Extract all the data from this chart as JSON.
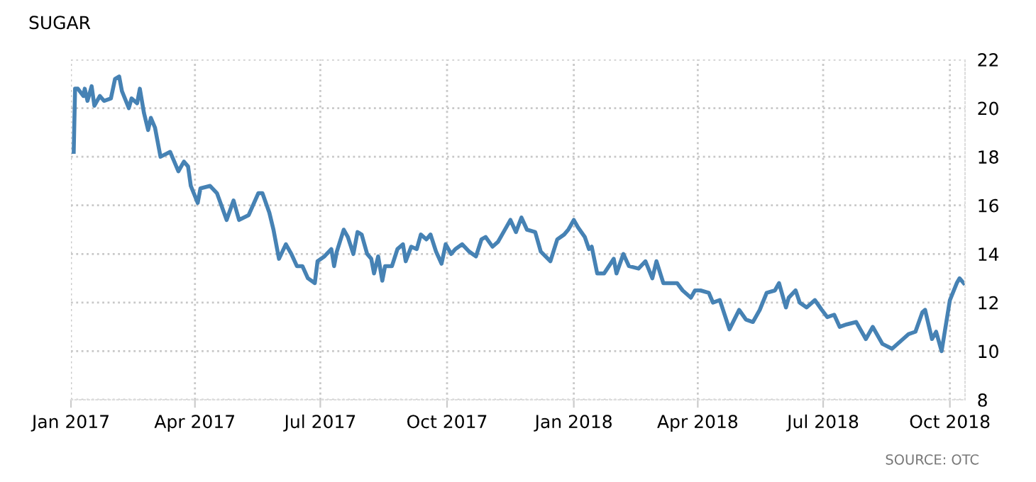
{
  "chart_data": {
    "type": "line",
    "title": "SUGAR",
    "annotations": [
      "SOURCE: OTC"
    ],
    "x": [
      "2017-01-03",
      "2017-01-04",
      "2017-01-06",
      "2017-01-10",
      "2017-01-11",
      "2017-01-13",
      "2017-01-16",
      "2017-01-18",
      "2017-01-22",
      "2017-01-25",
      "2017-01-30",
      "2017-02-02",
      "2017-02-05",
      "2017-02-07",
      "2017-02-12",
      "2017-02-14",
      "2017-02-18",
      "2017-02-20",
      "2017-02-23",
      "2017-02-26",
      "2017-02-28",
      "2017-03-03",
      "2017-03-07",
      "2017-03-14",
      "2017-03-20",
      "2017-03-24",
      "2017-03-27",
      "2017-03-29",
      "2017-04-03",
      "2017-04-05",
      "2017-04-12",
      "2017-04-17",
      "2017-04-24",
      "2017-04-29",
      "2017-05-03",
      "2017-05-10",
      "2017-05-17",
      "2017-05-20",
      "2017-05-25",
      "2017-05-28",
      "2017-06-01",
      "2017-06-06",
      "2017-06-10",
      "2017-06-14",
      "2017-06-18",
      "2017-06-22",
      "2017-06-27",
      "2017-06-29",
      "2017-07-04",
      "2017-07-09",
      "2017-07-11",
      "2017-07-13",
      "2017-07-18",
      "2017-07-21",
      "2017-07-25",
      "2017-07-28",
      "2017-07-31",
      "2017-08-04",
      "2017-08-07",
      "2017-08-09",
      "2017-08-12",
      "2017-08-15",
      "2017-08-17",
      "2017-08-22",
      "2017-08-26",
      "2017-08-30",
      "2017-09-01",
      "2017-09-05",
      "2017-09-09",
      "2017-09-12",
      "2017-09-16",
      "2017-09-19",
      "2017-09-23",
      "2017-09-27",
      "2017-09-30",
      "2017-10-04",
      "2017-10-07",
      "2017-10-12",
      "2017-10-17",
      "2017-10-22",
      "2017-10-26",
      "2017-10-29",
      "2017-11-03",
      "2017-11-07",
      "2017-11-12",
      "2017-11-16",
      "2017-11-20",
      "2017-11-24",
      "2017-11-28",
      "2017-12-04",
      "2017-12-08",
      "2017-12-15",
      "2017-12-20",
      "2017-12-25",
      "2017-12-28",
      "2018-01-01",
      "2018-01-04",
      "2018-01-09",
      "2018-01-12",
      "2018-01-14",
      "2018-01-18",
      "2018-01-23",
      "2018-01-30",
      "2018-02-01",
      "2018-02-06",
      "2018-02-10",
      "2018-02-17",
      "2018-02-22",
      "2018-02-27",
      "2018-03-02",
      "2018-03-07",
      "2018-03-12",
      "2018-03-17",
      "2018-03-21",
      "2018-03-27",
      "2018-03-30",
      "2018-04-03",
      "2018-04-09",
      "2018-04-12",
      "2018-04-17",
      "2018-04-24",
      "2018-05-01",
      "2018-05-06",
      "2018-05-11",
      "2018-05-16",
      "2018-05-21",
      "2018-05-27",
      "2018-05-30",
      "2018-06-04",
      "2018-06-06",
      "2018-06-11",
      "2018-06-14",
      "2018-06-19",
      "2018-06-25",
      "2018-06-30",
      "2018-07-04",
      "2018-07-09",
      "2018-07-13",
      "2018-07-18",
      "2018-07-25",
      "2018-08-01",
      "2018-08-06",
      "2018-08-13",
      "2018-08-20",
      "2018-08-28",
      "2018-09-01",
      "2018-09-06",
      "2018-09-11",
      "2018-09-13",
      "2018-09-18",
      "2018-09-21",
      "2018-09-25",
      "2018-10-01",
      "2018-10-06",
      "2018-10-08",
      "2018-10-11"
    ],
    "series": [
      {
        "color": "#4682b4",
        "values": [
          18.2,
          20.8,
          20.8,
          20.5,
          20.8,
          20.3,
          20.9,
          20.1,
          20.5,
          20.3,
          20.4,
          21.2,
          21.3,
          20.7,
          20.0,
          20.4,
          20.2,
          20.8,
          19.8,
          19.1,
          19.6,
          19.2,
          18.0,
          18.2,
          17.4,
          17.8,
          17.6,
          16.8,
          16.1,
          16.7,
          16.8,
          16.5,
          15.4,
          16.2,
          15.4,
          15.6,
          16.5,
          16.5,
          15.7,
          15.0,
          13.8,
          14.4,
          14.0,
          13.5,
          13.5,
          13.0,
          12.8,
          13.7,
          13.9,
          14.2,
          13.5,
          14.1,
          15.0,
          14.7,
          14.0,
          14.9,
          14.8,
          14.0,
          13.8,
          13.2,
          13.9,
          12.9,
          13.5,
          13.5,
          14.2,
          14.4,
          13.7,
          14.3,
          14.2,
          14.8,
          14.6,
          14.8,
          14.1,
          13.6,
          14.4,
          14.0,
          14.2,
          14.4,
          14.1,
          13.9,
          14.6,
          14.7,
          14.3,
          14.5,
          15.0,
          15.4,
          14.9,
          15.5,
          15.0,
          14.9,
          14.1,
          13.7,
          14.6,
          14.8,
          15.0,
          15.4,
          15.1,
          14.7,
          14.2,
          14.3,
          13.2,
          13.2,
          13.8,
          13.2,
          14.0,
          13.5,
          13.4,
          13.7,
          13.0,
          13.7,
          12.8,
          12.8,
          12.8,
          12.5,
          12.2,
          12.5,
          12.5,
          12.4,
          12.0,
          12.1,
          10.9,
          11.7,
          11.3,
          11.2,
          11.7,
          12.4,
          12.5,
          12.8,
          11.8,
          12.2,
          12.5,
          12.0,
          11.8,
          12.1,
          11.7,
          11.4,
          11.5,
          11.0,
          11.1,
          11.2,
          10.5,
          11.0,
          10.3,
          10.1,
          10.5,
          10.7,
          10.8,
          11.6,
          11.7,
          10.5,
          10.8,
          10.0,
          12.1,
          12.8,
          13.0,
          12.8
        ]
      }
    ],
    "xlim": [
      "2017-01-01",
      "2018-10-12"
    ],
    "xticks": [
      {
        "value": "2017-01-01",
        "label": "Jan 2017"
      },
      {
        "value": "2017-04-01",
        "label": "Apr 2017"
      },
      {
        "value": "2017-07-01",
        "label": "Jul 2017"
      },
      {
        "value": "2017-10-01",
        "label": "Oct 2017"
      },
      {
        "value": "2018-01-01",
        "label": "Jan 2018"
      },
      {
        "value": "2018-04-01",
        "label": "Apr 2018"
      },
      {
        "value": "2018-07-01",
        "label": "Jul 2018"
      },
      {
        "value": "2018-10-01",
        "label": "Oct 2018"
      }
    ],
    "ylim": [
      8,
      22
    ],
    "yticks": [
      8,
      10,
      12,
      14,
      16,
      18,
      20,
      22
    ],
    "grid": true,
    "legend": false,
    "marker": "none",
    "line_style": "solid"
  }
}
